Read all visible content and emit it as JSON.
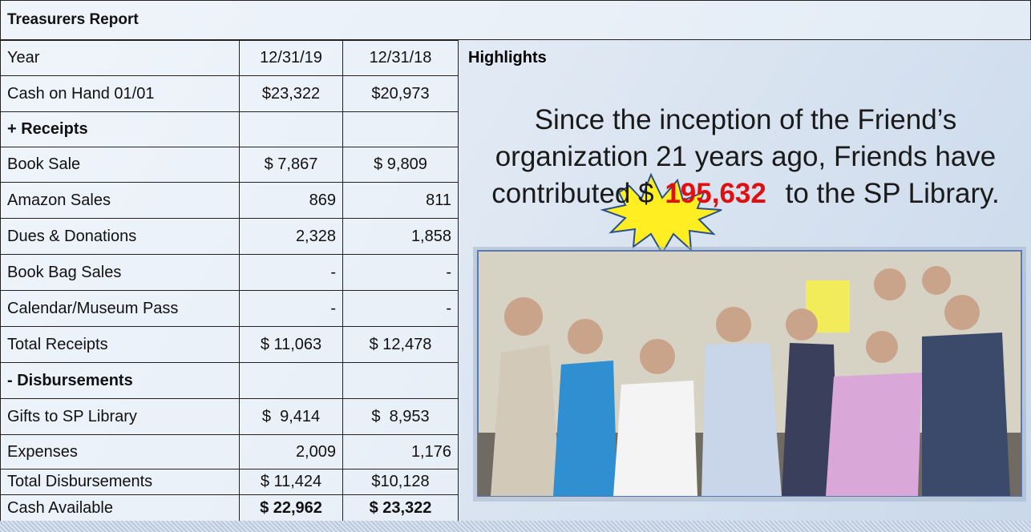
{
  "header": {
    "title": "Treasurers Report"
  },
  "table": {
    "rows": [
      [
        "Year",
        "12/31/19",
        "12/31/18"
      ],
      [
        "Cash on Hand 01/01",
        "$23,322",
        "$20,973"
      ],
      [
        "+ Receipts",
        null,
        null
      ],
      [
        "Book Sale",
        "$ 7,867",
        "$ 9,809"
      ],
      [
        "Amazon Sales",
        "869",
        "811"
      ],
      [
        "Dues & Donations",
        "2,328",
        "1,858"
      ],
      [
        "Book Bag Sales",
        "-",
        "-"
      ],
      [
        "Calendar/Museum Pass",
        "-",
        "-"
      ],
      [
        "Total Receipts",
        "$ 11,063",
        "$ 12,478"
      ],
      [
        "- Disbursements",
        null,
        null
      ],
      [
        "Gifts to SP Library",
        "$  9,414",
        "$  8,953"
      ],
      [
        "Expenses",
        "2,009",
        "1,176"
      ],
      [
        "Total Disbursements",
        "$ 11,424",
        "$10,128"
      ],
      [
        "Cash Available",
        "$ 22,962",
        "$ 23,322"
      ]
    ]
  },
  "highlights": {
    "title": "Highlights",
    "lines": [
      "Since the inception of the Friend’s",
      "organization 21 years ago, Friends have"
    ],
    "prefix": "contributed $",
    "amount": "195,632",
    "suffix": "to the SP Library."
  }
}
